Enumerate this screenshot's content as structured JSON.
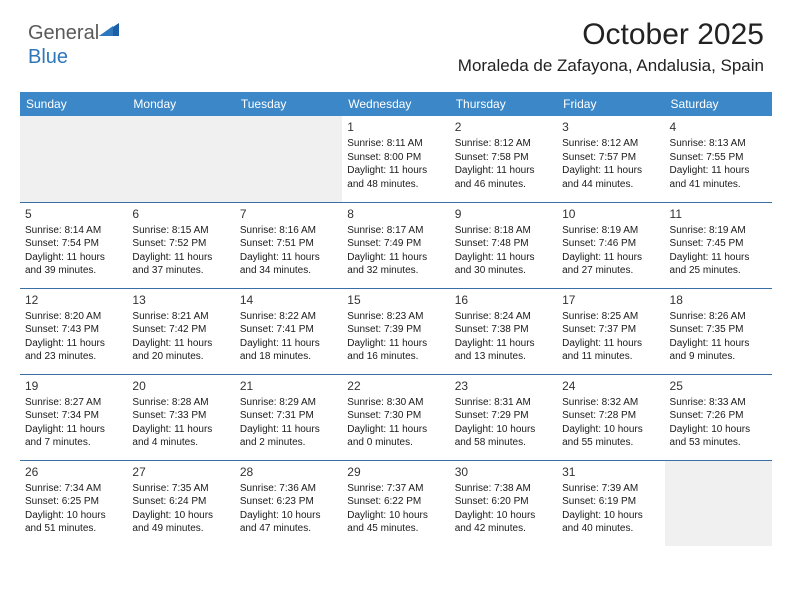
{
  "brand": {
    "part1": "General",
    "part2": "Blue"
  },
  "title": "October 2025",
  "location": "Moraleda de Zafayona, Andalusia, Spain",
  "colors": {
    "header_bg": "#3b87c8",
    "header_text": "#ffffff",
    "row_border": "#3b6fa3",
    "blank_bg": "#f0f0f0",
    "logo_gray": "#5a5a5a",
    "logo_blue": "#2f77bb",
    "logo_mark": "#1c5ea8"
  },
  "day_labels": [
    "Sunday",
    "Monday",
    "Tuesday",
    "Wednesday",
    "Thursday",
    "Friday",
    "Saturday"
  ],
  "weeks": [
    [
      null,
      null,
      null,
      {
        "n": "1",
        "sr": "8:11 AM",
        "ss": "8:00 PM",
        "dl": "11 hours and 48 minutes."
      },
      {
        "n": "2",
        "sr": "8:12 AM",
        "ss": "7:58 PM",
        "dl": "11 hours and 46 minutes."
      },
      {
        "n": "3",
        "sr": "8:12 AM",
        "ss": "7:57 PM",
        "dl": "11 hours and 44 minutes."
      },
      {
        "n": "4",
        "sr": "8:13 AM",
        "ss": "7:55 PM",
        "dl": "11 hours and 41 minutes."
      }
    ],
    [
      {
        "n": "5",
        "sr": "8:14 AM",
        "ss": "7:54 PM",
        "dl": "11 hours and 39 minutes."
      },
      {
        "n": "6",
        "sr": "8:15 AM",
        "ss": "7:52 PM",
        "dl": "11 hours and 37 minutes."
      },
      {
        "n": "7",
        "sr": "8:16 AM",
        "ss": "7:51 PM",
        "dl": "11 hours and 34 minutes."
      },
      {
        "n": "8",
        "sr": "8:17 AM",
        "ss": "7:49 PM",
        "dl": "11 hours and 32 minutes."
      },
      {
        "n": "9",
        "sr": "8:18 AM",
        "ss": "7:48 PM",
        "dl": "11 hours and 30 minutes."
      },
      {
        "n": "10",
        "sr": "8:19 AM",
        "ss": "7:46 PM",
        "dl": "11 hours and 27 minutes."
      },
      {
        "n": "11",
        "sr": "8:19 AM",
        "ss": "7:45 PM",
        "dl": "11 hours and 25 minutes."
      }
    ],
    [
      {
        "n": "12",
        "sr": "8:20 AM",
        "ss": "7:43 PM",
        "dl": "11 hours and 23 minutes."
      },
      {
        "n": "13",
        "sr": "8:21 AM",
        "ss": "7:42 PM",
        "dl": "11 hours and 20 minutes."
      },
      {
        "n": "14",
        "sr": "8:22 AM",
        "ss": "7:41 PM",
        "dl": "11 hours and 18 minutes."
      },
      {
        "n": "15",
        "sr": "8:23 AM",
        "ss": "7:39 PM",
        "dl": "11 hours and 16 minutes."
      },
      {
        "n": "16",
        "sr": "8:24 AM",
        "ss": "7:38 PM",
        "dl": "11 hours and 13 minutes."
      },
      {
        "n": "17",
        "sr": "8:25 AM",
        "ss": "7:37 PM",
        "dl": "11 hours and 11 minutes."
      },
      {
        "n": "18",
        "sr": "8:26 AM",
        "ss": "7:35 PM",
        "dl": "11 hours and 9 minutes."
      }
    ],
    [
      {
        "n": "19",
        "sr": "8:27 AM",
        "ss": "7:34 PM",
        "dl": "11 hours and 7 minutes."
      },
      {
        "n": "20",
        "sr": "8:28 AM",
        "ss": "7:33 PM",
        "dl": "11 hours and 4 minutes."
      },
      {
        "n": "21",
        "sr": "8:29 AM",
        "ss": "7:31 PM",
        "dl": "11 hours and 2 minutes."
      },
      {
        "n": "22",
        "sr": "8:30 AM",
        "ss": "7:30 PM",
        "dl": "11 hours and 0 minutes."
      },
      {
        "n": "23",
        "sr": "8:31 AM",
        "ss": "7:29 PM",
        "dl": "10 hours and 58 minutes."
      },
      {
        "n": "24",
        "sr": "8:32 AM",
        "ss": "7:28 PM",
        "dl": "10 hours and 55 minutes."
      },
      {
        "n": "25",
        "sr": "8:33 AM",
        "ss": "7:26 PM",
        "dl": "10 hours and 53 minutes."
      }
    ],
    [
      {
        "n": "26",
        "sr": "7:34 AM",
        "ss": "6:25 PM",
        "dl": "10 hours and 51 minutes."
      },
      {
        "n": "27",
        "sr": "7:35 AM",
        "ss": "6:24 PM",
        "dl": "10 hours and 49 minutes."
      },
      {
        "n": "28",
        "sr": "7:36 AM",
        "ss": "6:23 PM",
        "dl": "10 hours and 47 minutes."
      },
      {
        "n": "29",
        "sr": "7:37 AM",
        "ss": "6:22 PM",
        "dl": "10 hours and 45 minutes."
      },
      {
        "n": "30",
        "sr": "7:38 AM",
        "ss": "6:20 PM",
        "dl": "10 hours and 42 minutes."
      },
      {
        "n": "31",
        "sr": "7:39 AM",
        "ss": "6:19 PM",
        "dl": "10 hours and 40 minutes."
      },
      null
    ]
  ],
  "labels": {
    "sunrise": "Sunrise:",
    "sunset": "Sunset:",
    "daylight": "Daylight:"
  }
}
